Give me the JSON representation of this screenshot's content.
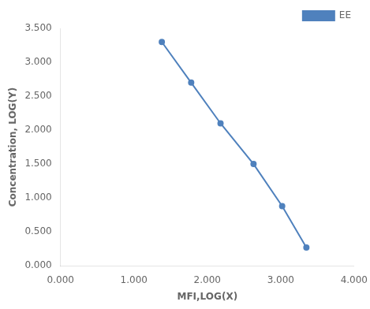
{
  "chart_data": {
    "type": "line",
    "x": [
      1.38,
      1.78,
      2.18,
      2.63,
      3.02,
      3.35
    ],
    "series": [
      {
        "name": "EE",
        "color": "#4f81bd",
        "marker": "circle",
        "values": [
          3.3,
          2.7,
          2.1,
          1.5,
          0.88,
          0.27
        ]
      }
    ],
    "xlabel": "MFI,LOG(X)",
    "ylabel": "Concentration, LOG(Y)",
    "xlim": [
      0.0,
      4.0
    ],
    "ylim": [
      0.0,
      3.5
    ],
    "xticks": [
      {
        "value": 0.0,
        "label": "0.000"
      },
      {
        "value": 1.0,
        "label": "1.000"
      },
      {
        "value": 2.0,
        "label": "2.000"
      },
      {
        "value": 3.0,
        "label": "3.000"
      },
      {
        "value": 4.0,
        "label": "4.000"
      }
    ],
    "yticks": [
      {
        "value": 0.0,
        "label": "0.000"
      },
      {
        "value": 0.5,
        "label": "0.500"
      },
      {
        "value": 1.0,
        "label": "1.000"
      },
      {
        "value": 1.5,
        "label": "1.500"
      },
      {
        "value": 2.0,
        "label": "2.000"
      },
      {
        "value": 2.5,
        "label": "2.500"
      },
      {
        "value": 3.0,
        "label": "3.000"
      },
      {
        "value": 3.5,
        "label": "3.500"
      }
    ],
    "grid": false,
    "legend": "upper right"
  }
}
